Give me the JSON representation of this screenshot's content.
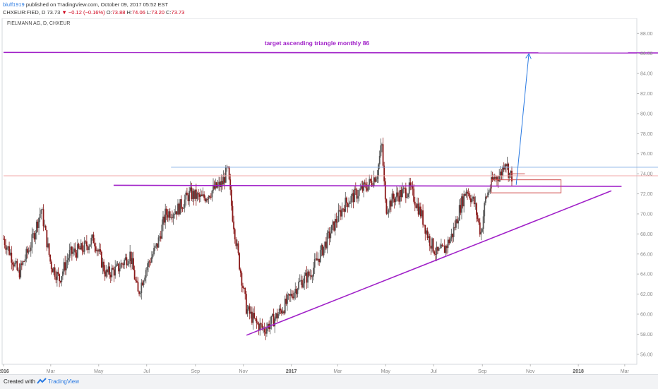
{
  "header": {
    "author": "bluff1919",
    "published_text": "published on TradingView.com, October 09, 2017 05:52 EST",
    "symbol": "CHXEUR:FIED, D",
    "last": "73.73",
    "change": "−0.12 (−0.16%)",
    "open_label": "O:",
    "open": "73.88",
    "high_label": "H:",
    "high": "74.06",
    "low_label": "L:",
    "low": "73.20",
    "close_label": "C:",
    "close": "73.73"
  },
  "chart_data": {
    "type": "candlestick",
    "title": "FIELMANN AG, D, CHXEUR",
    "annotation": "target ascending triangle monthly 86",
    "ylim": [
      55.0,
      89.5
    ],
    "y_ticks": [
      "56.00",
      "58.00",
      "60.00",
      "62.00",
      "64.00",
      "66.00",
      "68.00",
      "70.00",
      "72.00",
      "74.00",
      "76.00",
      "78.00",
      "80.00",
      "82.00",
      "84.00",
      "86.00",
      "88.00"
    ],
    "x_ticks": [
      {
        "label": "2016",
        "date": "2016-01-01",
        "bold": true
      },
      {
        "label": "Mar",
        "date": "2016-03-01"
      },
      {
        "label": "May",
        "date": "2016-05-01"
      },
      {
        "label": "Jul",
        "date": "2016-07-01"
      },
      {
        "label": "Sep",
        "date": "2016-09-01"
      },
      {
        "label": "Nov",
        "date": "2016-11-01"
      },
      {
        "label": "2017",
        "date": "2017-01-01",
        "bold": true
      },
      {
        "label": "Mar",
        "date": "2017-03-01"
      },
      {
        "label": "May",
        "date": "2017-05-01"
      },
      {
        "label": "Jul",
        "date": "2017-07-01"
      },
      {
        "label": "Sep",
        "date": "2017-09-01"
      },
      {
        "label": "Nov",
        "date": "2017-11-01"
      },
      {
        "label": "2018",
        "date": "2018-01-01",
        "bold": true
      },
      {
        "label": "Mar",
        "date": "2018-03-01"
      }
    ],
    "price_path": [
      [
        "2016-01-01",
        67.5
      ],
      [
        "2016-01-10",
        66.0
      ],
      [
        "2016-01-20",
        64.0
      ],
      [
        "2016-02-05",
        67.0
      ],
      [
        "2016-02-18",
        70.5
      ],
      [
        "2016-03-01",
        65.0
      ],
      [
        "2016-03-12",
        63.5
      ],
      [
        "2016-03-25",
        66.0
      ],
      [
        "2016-04-10",
        66.5
      ],
      [
        "2016-04-25",
        67.5
      ],
      [
        "2016-05-10",
        64.0
      ],
      [
        "2016-05-25",
        64.5
      ],
      [
        "2016-06-10",
        66.0
      ],
      [
        "2016-06-20",
        62.0
      ],
      [
        "2016-06-30",
        64.5
      ],
      [
        "2016-07-15",
        67.0
      ],
      [
        "2016-07-25",
        70.0
      ],
      [
        "2016-08-10",
        70.5
      ],
      [
        "2016-08-25",
        72.0
      ],
      [
        "2016-09-10",
        71.5
      ],
      [
        "2016-09-25",
        72.5
      ],
      [
        "2016-10-05",
        73.0
      ],
      [
        "2016-10-12",
        74.5
      ],
      [
        "2016-10-18",
        70.0
      ],
      [
        "2016-10-25",
        66.0
      ],
      [
        "2016-11-05",
        60.5
      ],
      [
        "2016-11-18",
        59.0
      ],
      [
        "2016-11-28",
        58.5
      ],
      [
        "2016-12-10",
        59.5
      ],
      [
        "2016-12-25",
        61.0
      ],
      [
        "2017-01-10",
        63.0
      ],
      [
        "2017-01-25",
        64.0
      ],
      [
        "2017-02-10",
        66.5
      ],
      [
        "2017-02-25",
        69.0
      ],
      [
        "2017-03-10",
        71.0
      ],
      [
        "2017-03-25",
        72.0
      ],
      [
        "2017-04-10",
        73.0
      ],
      [
        "2017-04-20",
        74.0
      ],
      [
        "2017-04-26",
        77.0
      ],
      [
        "2017-05-01",
        70.5
      ],
      [
        "2017-05-10",
        71.5
      ],
      [
        "2017-05-20",
        72.0
      ],
      [
        "2017-06-01",
        72.5
      ],
      [
        "2017-06-15",
        70.0
      ],
      [
        "2017-06-25",
        67.5
      ],
      [
        "2017-07-05",
        66.0
      ],
      [
        "2017-07-15",
        66.5
      ],
      [
        "2017-07-25",
        68.0
      ],
      [
        "2017-08-05",
        71.0
      ],
      [
        "2017-08-12",
        72.5
      ],
      [
        "2017-08-22",
        71.0
      ],
      [
        "2017-08-30",
        68.0
      ],
      [
        "2017-09-05",
        71.5
      ],
      [
        "2017-09-15",
        73.5
      ],
      [
        "2017-09-25",
        74.0
      ],
      [
        "2017-09-30",
        75.5
      ],
      [
        "2017-10-05",
        74.0
      ],
      [
        "2017-10-09",
        73.73
      ]
    ],
    "drawings": [
      {
        "kind": "line",
        "color": "#a020c8",
        "x1": "2016-01-01",
        "y1": 86.1,
        "x2": "2018-04-15",
        "y2": 86.05
      },
      {
        "kind": "line",
        "color": "#a020c8",
        "x1": "2016-05-20",
        "y1": 72.85,
        "x2": "2018-02-25",
        "y2": 72.75
      },
      {
        "kind": "line",
        "color": "#a020c8",
        "x1": "2016-11-05",
        "y1": 57.9,
        "x2": "2018-02-12",
        "y2": 72.3
      },
      {
        "kind": "line",
        "color": "#8ab4e8",
        "x1": "2016-08-01",
        "y1": 74.65,
        "x2": "2018-04-15",
        "y2": 74.65
      },
      {
        "kind": "line",
        "color": "#f0a8a8",
        "x1": "2016-01-01",
        "y1": 73.8,
        "x2": "2018-04-15",
        "y2": 73.8
      },
      {
        "kind": "line",
        "color": "#d05050",
        "x1": "2017-10-06",
        "y1": 74.0,
        "x2": "2017-10-25",
        "y2": 74.0
      },
      {
        "kind": "rect",
        "color": "#d05050",
        "x1": "2017-09-12",
        "y1": 72.1,
        "x2": "2017-12-10",
        "y2": 73.4
      },
      {
        "kind": "arrow",
        "color": "#2a7ae2",
        "x1": "2017-10-14",
        "y1": 72.9,
        "x2": "2017-10-30",
        "y2": 85.9
      }
    ]
  },
  "footer": {
    "created_with": "Created with",
    "brand": "TradingView"
  },
  "colors": {
    "up_candle": "#555555",
    "down_candle": "#8b1a1a",
    "trendline": "#a020c8",
    "target_arrow": "#2a7ae2"
  }
}
